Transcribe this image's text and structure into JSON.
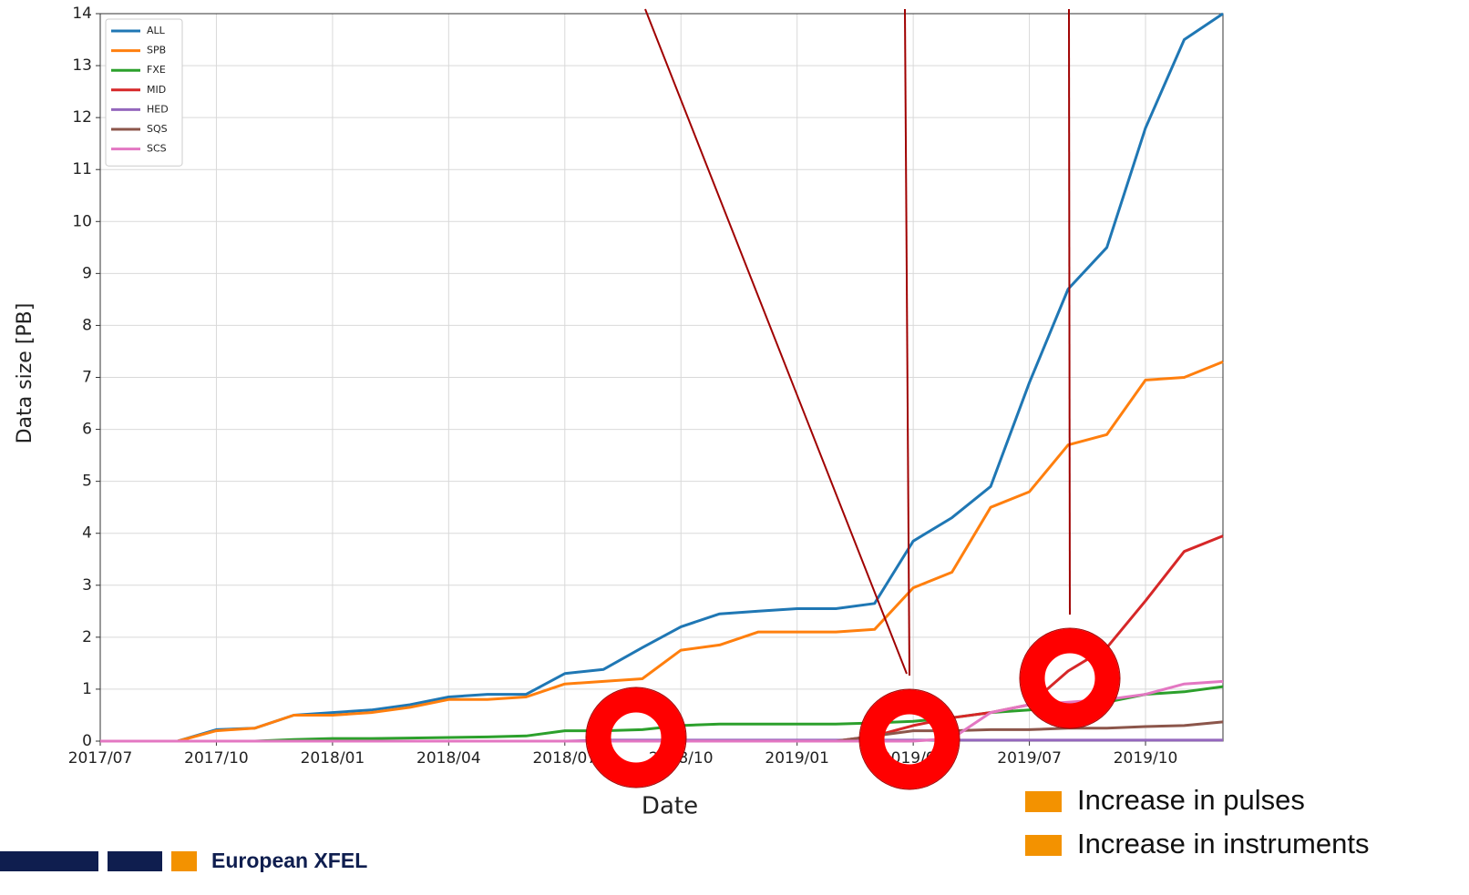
{
  "chart_data": {
    "type": "line",
    "xlabel": "Date",
    "ylabel": "Data size [PB]",
    "x": [
      "2017/07",
      "2017/08",
      "2017/09",
      "2017/10",
      "2017/11",
      "2017/12",
      "2018/01",
      "2018/02",
      "2018/03",
      "2018/04",
      "2018/05",
      "2018/06",
      "2018/07",
      "2018/08",
      "2018/09",
      "2018/10",
      "2018/11",
      "2018/12",
      "2019/01",
      "2019/02",
      "2019/03",
      "2019/04",
      "2019/05",
      "2019/06",
      "2019/07",
      "2019/08",
      "2019/09",
      "2019/10",
      "2019/11",
      "2019/12"
    ],
    "series": [
      {
        "name": "ALL",
        "color": "#1f77b4",
        "values": [
          0,
          0,
          0,
          0.22,
          0.25,
          0.5,
          0.55,
          0.6,
          0.7,
          0.85,
          0.9,
          0.9,
          1.3,
          1.38,
          1.8,
          2.2,
          2.45,
          2.5,
          2.55,
          2.55,
          2.65,
          3.85,
          4.3,
          4.9,
          6.9,
          8.7,
          9.5,
          11.8,
          13.5,
          14.0
        ]
      },
      {
        "name": "SPB",
        "color": "#ff7f0e",
        "values": [
          0,
          0,
          0,
          0.2,
          0.25,
          0.5,
          0.5,
          0.55,
          0.65,
          0.8,
          0.8,
          0.85,
          1.1,
          1.15,
          1.2,
          1.75,
          1.85,
          2.1,
          2.1,
          2.1,
          2.15,
          2.95,
          3.25,
          4.5,
          4.8,
          5.7,
          5.9,
          6.95,
          7.0,
          7.3
        ]
      },
      {
        "name": "FXE",
        "color": "#2ca02c",
        "values": [
          0,
          0,
          0,
          0,
          0,
          0.03,
          0.05,
          0.05,
          0.06,
          0.07,
          0.08,
          0.1,
          0.2,
          0.2,
          0.22,
          0.3,
          0.33,
          0.33,
          0.33,
          0.33,
          0.35,
          0.38,
          0.45,
          0.55,
          0.6,
          0.7,
          0.75,
          0.9,
          0.95,
          1.05
        ]
      },
      {
        "name": "MID",
        "color": "#d62728",
        "values": [
          0,
          0,
          0,
          0,
          0,
          0,
          0,
          0,
          0,
          0,
          0,
          0,
          0,
          0,
          0,
          0,
          0,
          0,
          0,
          0,
          0.1,
          0.3,
          0.45,
          0.55,
          0.7,
          1.35,
          1.8,
          2.7,
          3.65,
          3.95
        ]
      },
      {
        "name": "HED",
        "color": "#9467bd",
        "values": [
          0,
          0,
          0,
          0,
          0,
          0,
          0,
          0,
          0,
          0,
          0,
          0,
          0,
          0.02,
          0.02,
          0.02,
          0.02,
          0.02,
          0.02,
          0.02,
          0.02,
          0.02,
          0.02,
          0.02,
          0.02,
          0.02,
          0.02,
          0.02,
          0.02,
          0.02
        ]
      },
      {
        "name": "SQS",
        "color": "#8c564b",
        "values": [
          0,
          0,
          0,
          0,
          0,
          0,
          0,
          0,
          0,
          0,
          0,
          0,
          0,
          0,
          0,
          0,
          0,
          0,
          0,
          0,
          0.1,
          0.2,
          0.2,
          0.22,
          0.22,
          0.25,
          0.25,
          0.28,
          0.3,
          0.37
        ]
      },
      {
        "name": "SCS",
        "color": "#e377c2",
        "values": [
          0,
          0,
          0,
          0,
          0,
          0,
          0,
          0,
          0,
          0,
          0,
          0,
          0,
          0,
          0,
          0,
          0,
          0,
          0,
          0,
          0,
          0,
          0.05,
          0.55,
          0.7,
          0.75,
          0.8,
          0.9,
          1.1,
          1.15
        ]
      }
    ],
    "xlim": [
      "2017/07",
      "2019/12"
    ],
    "xticks": [
      "2017/07",
      "2017/10",
      "2018/01",
      "2018/04",
      "2018/07",
      "2018/10",
      "2019/01",
      "2019/04",
      "2019/07",
      "2019/10"
    ],
    "ylim": [
      0,
      14
    ],
    "yticks": [
      0,
      1,
      2,
      3,
      4,
      5,
      6,
      7,
      8,
      9,
      10,
      11,
      12,
      13,
      14
    ],
    "grid": true,
    "legend": "upper left"
  },
  "slide": {
    "legend": [
      {
        "label": "Increase in pulses",
        "color": "#f39200"
      },
      {
        "label": "Increase in instruments",
        "color": "#f39200"
      }
    ],
    "brand": "European XFEL"
  }
}
